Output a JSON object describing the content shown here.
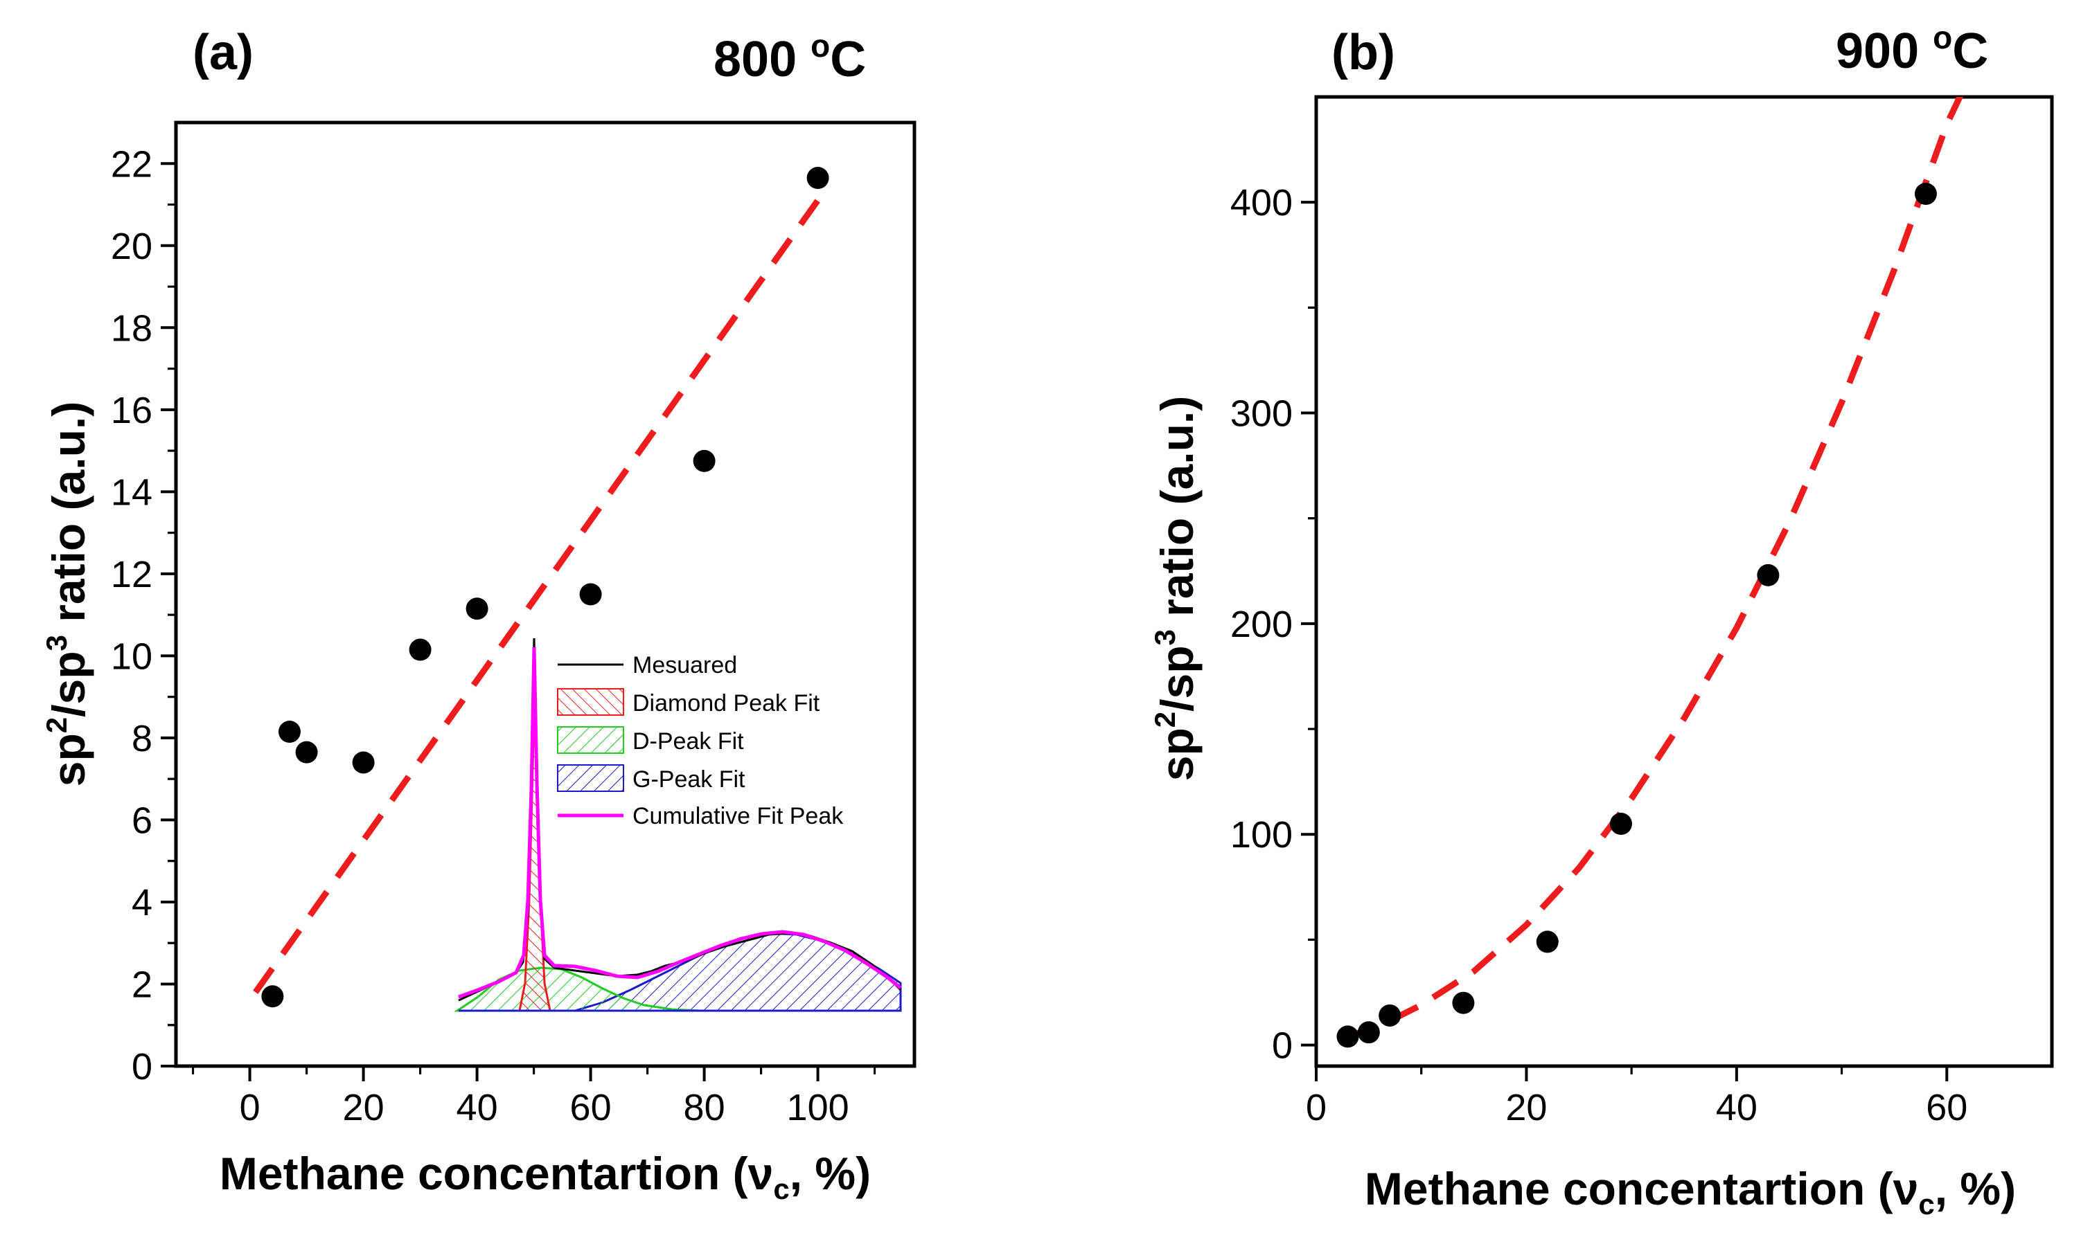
{
  "chart_data": [
    {
      "panel": "(a)",
      "type": "scatter",
      "title": "800 ºC",
      "title_main": "800 ",
      "title_sup": "o",
      "title_tail": "C",
      "xlabel": "Methane concentartion (ν",
      "xlabel_sub": "c",
      "xlabel_tail": ", %)",
      "ylabel_parts": [
        "sp",
        "2",
        "/sp",
        "3",
        " ratio (a.u.)"
      ],
      "xlim": [
        -13,
        117
      ],
      "ylim": [
        0,
        23
      ],
      "xticks": [
        0,
        20,
        40,
        60,
        80,
        100
      ],
      "yticks": [
        0,
        2,
        4,
        6,
        8,
        10,
        12,
        14,
        16,
        18,
        20,
        22
      ],
      "points": {
        "x": [
          4,
          7,
          10,
          20,
          30,
          40,
          60,
          80,
          100
        ],
        "y": [
          1.7,
          8.15,
          7.65,
          7.4,
          10.15,
          11.15,
          11.5,
          14.75,
          21.65
        ]
      },
      "fit": {
        "style": "dashed",
        "color": "#ee1c1c",
        "x": [
          1,
          101
        ],
        "y": [
          1.8,
          21.3
        ]
      },
      "inset": {
        "legend": [
          {
            "label": "Mesuared",
            "kind": "line",
            "color": "#000000"
          },
          {
            "label": "Diamond Peak Fit",
            "kind": "hatch",
            "color": "#ee1c1c"
          },
          {
            "label": "D-Peak Fit",
            "kind": "hatch",
            "color": "#22cc22"
          },
          {
            "label": "G-Peak Fit",
            "kind": "hatch",
            "color": "#1a1acc"
          },
          {
            "label": "Cumulative Fit Peak",
            "kind": "line",
            "color": "#ff00ff"
          }
        ]
      }
    },
    {
      "panel": "(b)",
      "type": "scatter",
      "title": "900 ºC",
      "title_main": "900 ",
      "title_sup": "o",
      "title_tail": "C",
      "xlabel": "Methane concentartion (ν",
      "xlabel_sub": "c",
      "xlabel_tail": ", %)",
      "ylabel_parts": [
        "sp",
        "2",
        "/sp",
        "3",
        " ratio (a.u.)"
      ],
      "xlim": [
        0,
        70
      ],
      "ylim": [
        -10,
        450
      ],
      "xticks": [
        0,
        20,
        40,
        60
      ],
      "yticks": [
        0,
        100,
        200,
        300,
        400
      ],
      "points": {
        "x": [
          3,
          5,
          7,
          14,
          22,
          29,
          43,
          58
        ],
        "y": [
          4,
          6,
          14,
          20,
          49,
          105,
          223,
          404
        ]
      },
      "fit": {
        "style": "dashed",
        "color": "#ee1c1c",
        "x": [
          3,
          6,
          10,
          15,
          20,
          25,
          30,
          35,
          40,
          45,
          50,
          55,
          60,
          62
        ],
        "y": [
          4,
          9,
          19,
          35,
          57,
          84,
          117,
          155,
          198,
          248,
          305,
          368,
          437,
          458
        ]
      }
    }
  ]
}
